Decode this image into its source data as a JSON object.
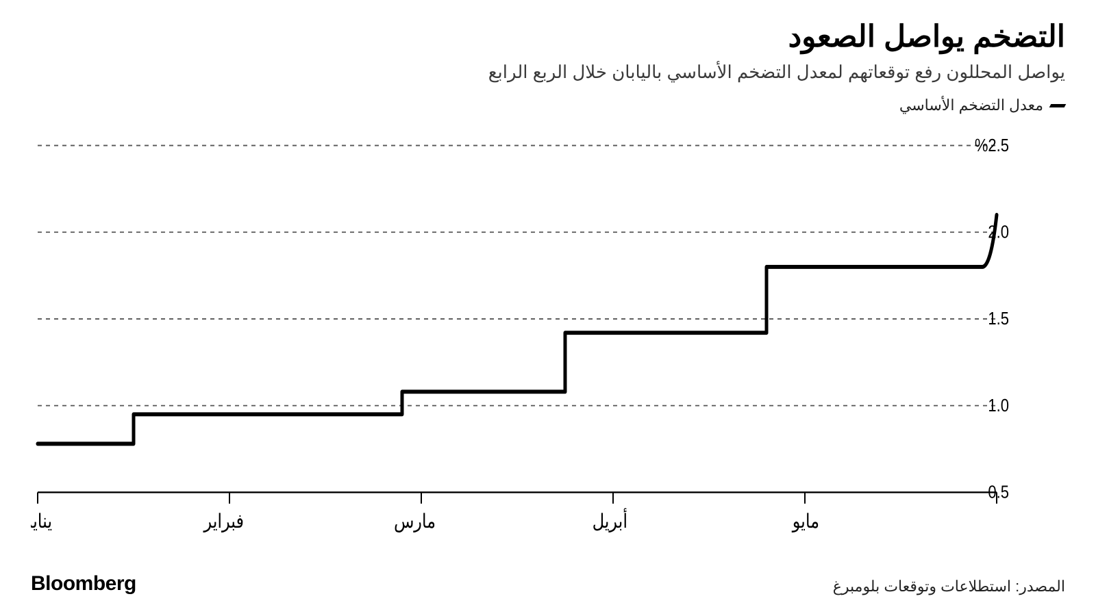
{
  "title": "التضخم يواصل الصعود",
  "subtitle": "يواصل المحللون رفع توقعاتهم لمعدل التضخم الأساسي باليابان خلال الربع الرابع",
  "legend_label": "معدل التضخم الأساسي",
  "source": "المصدر: استطلاعات وتوقعات بلومبرغ",
  "brand": "Bloomberg",
  "chart": {
    "type": "step-line",
    "background_color": "#ffffff",
    "line_color": "#000000",
    "line_width": 5,
    "grid_color": "#555555",
    "grid_dash": "6,6",
    "axis_color": "#000000",
    "axis_width": 2,
    "tick_length": 14,
    "y": {
      "min": 0.5,
      "max": 2.5,
      "ticks": [
        0.5,
        1.0,
        1.5,
        2.0,
        2.5
      ],
      "labels": [
        "0.5",
        "1.0",
        "1.5",
        "2.0",
        "%2.5"
      ],
      "label_fontsize": 22,
      "label_color": "#000000",
      "label_side": "right"
    },
    "x": {
      "categories": [
        "يناير",
        "فبراير",
        "مارس",
        "أبريل",
        "مايو"
      ],
      "label_fontsize": 24,
      "label_color": "#000000"
    },
    "series": {
      "name": "core_inflation",
      "points": [
        {
          "t": 0.0,
          "v": 0.78
        },
        {
          "t": 0.1,
          "v": 0.78
        },
        {
          "t": 0.11,
          "v": 0.95
        },
        {
          "t": 0.38,
          "v": 0.95
        },
        {
          "t": 0.385,
          "v": 1.08
        },
        {
          "t": 0.55,
          "v": 1.08
        },
        {
          "t": 0.555,
          "v": 1.42
        },
        {
          "t": 0.76,
          "v": 1.42
        },
        {
          "t": 0.765,
          "v": 1.8
        },
        {
          "t": 0.985,
          "v": 1.8
        },
        {
          "t": 1.0,
          "v": 2.1
        }
      ]
    }
  }
}
